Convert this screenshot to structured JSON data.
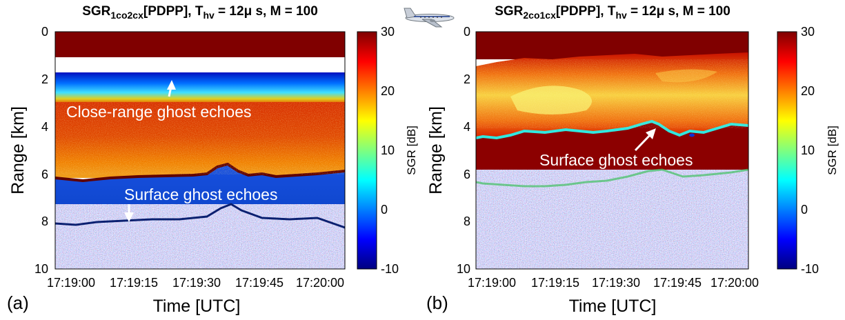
{
  "chart_data": [
    {
      "type": "heatmap",
      "panel_label": "(a)",
      "title": {
        "base": "SGR",
        "sub": "1co2cx",
        "mid": "[PDPP], T",
        "sub2": "hv",
        "tail": " = 12μ s, M = 100"
      },
      "xlabel": "Time [UTC]",
      "ylabel": "Range [km]",
      "x_ticks": [
        "17:19:00",
        "17:19:15",
        "17:19:30",
        "17:19:45",
        "17:20:00"
      ],
      "y_ticks": [
        "0",
        "2",
        "4",
        "6",
        "8",
        "10"
      ],
      "ylim": [
        0,
        10
      ],
      "y_reversed": true,
      "colorbar": {
        "label": "SGR [dB]",
        "ticks": [
          "30",
          "20",
          "10",
          "0",
          "-10"
        ],
        "range": [
          -10,
          30
        ],
        "colormap": "jet"
      },
      "annotations": [
        "Close-range ghost echoes",
        "Surface ghost echoes"
      ],
      "layers_km": {
        "saturated_top": [
          0,
          1.2
        ],
        "blank_gap": [
          1.2,
          1.75
        ],
        "close_range_ghost_band": [
          1.75,
          3.0
        ],
        "signal_region": [
          3.0,
          6.1
        ],
        "surface_ghost_line": 6.2,
        "low_sgr_band": [
          6.2,
          8.0
        ],
        "noise_floor_start": 8.0
      }
    },
    {
      "type": "heatmap",
      "panel_label": "(b)",
      "title": {
        "base": "SGR",
        "sub": "2co1cx",
        "mid": "[PDPP], T",
        "sub2": "hv",
        "tail": " = 12μ s, M = 100"
      },
      "xlabel": "Time [UTC]",
      "ylabel": "Range [km]",
      "x_ticks": [
        "17:19:00",
        "17:19:15",
        "17:19:30",
        "17:19:45",
        "17:20:00"
      ],
      "y_ticks": [
        "0",
        "2",
        "4",
        "6",
        "8",
        "10"
      ],
      "ylim": [
        0,
        10
      ],
      "y_reversed": true,
      "colorbar": {
        "label": "SGR [dB]",
        "ticks": [
          "30",
          "20",
          "10",
          "0",
          "-10"
        ],
        "range": [
          -10,
          30
        ],
        "colormap": "jet"
      },
      "annotations": [
        "Surface ghost echoes"
      ],
      "layers_km": {
        "saturated_top": [
          0,
          1.0
        ],
        "signal_region": [
          1.0,
          4.2
        ],
        "surface_ghost_line": 4.2,
        "saturated_band": [
          4.2,
          6.1
        ],
        "noise_floor_start": 6.1
      }
    }
  ]
}
